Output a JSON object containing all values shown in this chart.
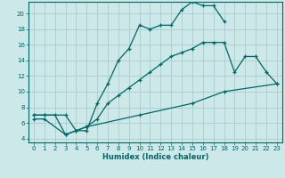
{
  "title": "",
  "xlabel": "Humidex (Indice chaleur)",
  "bg_color": "#cce8e8",
  "grid_color": "#aacccc",
  "line_color": "#006666",
  "xlim": [
    -0.5,
    23.5
  ],
  "ylim": [
    3.5,
    21.5
  ],
  "xticks": [
    0,
    1,
    2,
    3,
    4,
    5,
    6,
    7,
    8,
    9,
    10,
    11,
    12,
    13,
    14,
    15,
    16,
    17,
    18,
    19,
    20,
    21,
    22,
    23
  ],
  "yticks": [
    4,
    6,
    8,
    10,
    12,
    14,
    16,
    18,
    20
  ],
  "line1_x": [
    0,
    1,
    2,
    3,
    4,
    5,
    6,
    7,
    8,
    9,
    10,
    11,
    12,
    13,
    14,
    15,
    16,
    17,
    18
  ],
  "line1_y": [
    7,
    7,
    7,
    4.5,
    5,
    5,
    8.5,
    11,
    14,
    15.5,
    18.5,
    18,
    18.5,
    18.5,
    20.5,
    21.5,
    21,
    21,
    19
  ],
  "line2_x": [
    0,
    1,
    3,
    4,
    5,
    6,
    7,
    8,
    9,
    10,
    11,
    12,
    13,
    14,
    15,
    16,
    17,
    18,
    19,
    20,
    21,
    22,
    23
  ],
  "line2_y": [
    7,
    7,
    7,
    5,
    5.5,
    6.5,
    8.5,
    9.5,
    10.5,
    11.5,
    12.5,
    13.5,
    14.5,
    15,
    15.5,
    16.3,
    16.3,
    16.3,
    12.5,
    14.5,
    14.5,
    12.5,
    11
  ],
  "line3_x": [
    0,
    1,
    3,
    5,
    10,
    15,
    18,
    23
  ],
  "line3_y": [
    6.5,
    6.5,
    4.5,
    5.5,
    7,
    8.5,
    10,
    11
  ]
}
